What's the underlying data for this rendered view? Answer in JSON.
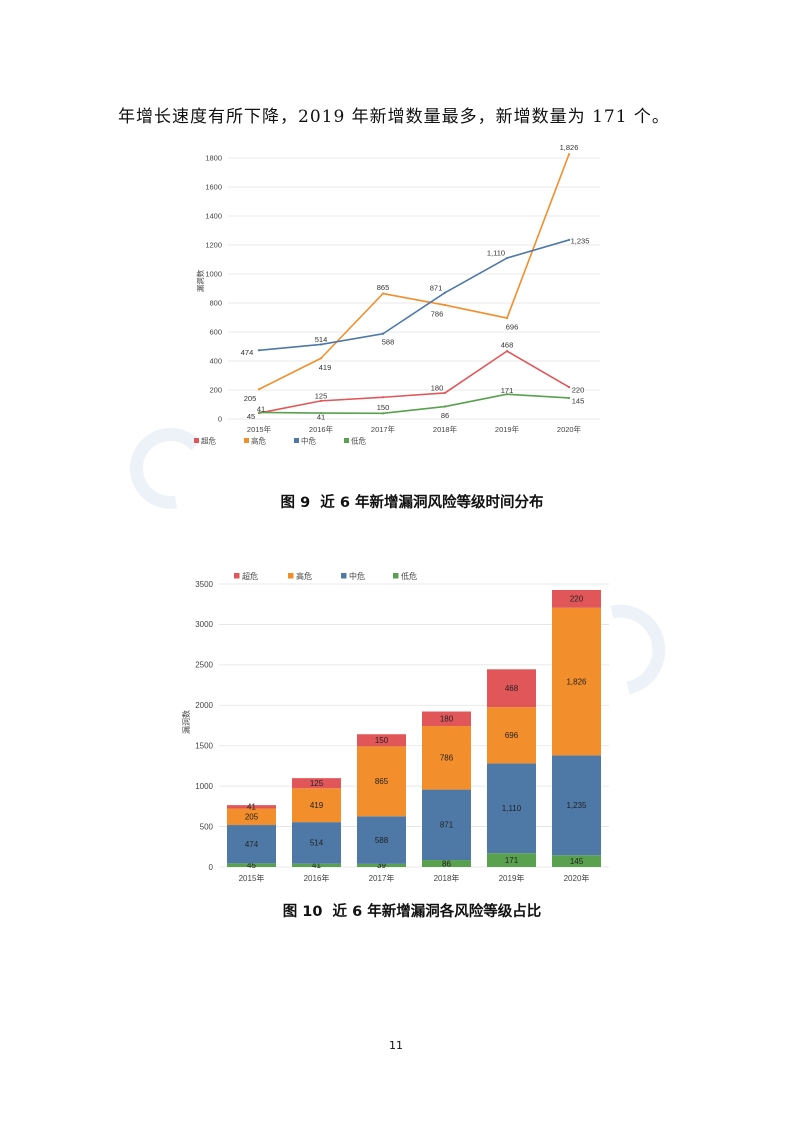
{
  "body_text": "年增长速度有所下降，2019 年新增数量最多，新增数量为 171 个。",
  "page_number": "11",
  "chart_data": [
    {
      "type": "line",
      "caption": "图 9  近 6 年新增漏洞风险等级时间分布",
      "ylabel": "漏洞数",
      "ylim": [
        0,
        1800
      ],
      "yticks": [
        0,
        200,
        400,
        600,
        800,
        1000,
        1200,
        1400,
        1600,
        1800
      ],
      "categories": [
        "2015年",
        "2016年",
        "2017年",
        "2018年",
        "2019年",
        "2020年"
      ],
      "grid": true,
      "legend": "bottom-left",
      "series": [
        {
          "name": "超危",
          "color": "#e15759",
          "values": [
            41,
            125,
            150,
            180,
            468,
            220
          ],
          "labels": [
            "41",
            "125",
            "150",
            "180",
            "468",
            "220"
          ]
        },
        {
          "name": "高危",
          "color": "#f28e2b",
          "values": [
            205,
            419,
            865,
            786,
            696,
            1826
          ],
          "labels": [
            "205",
            "419",
            "865",
            "786",
            "696",
            "1,826"
          ]
        },
        {
          "name": "中危",
          "color": "#4e79a7",
          "values": [
            474,
            514,
            588,
            871,
            1110,
            1235
          ],
          "labels": [
            "474",
            "514",
            "588",
            "871",
            "1,110",
            "1,235"
          ]
        },
        {
          "name": "低危",
          "color": "#59a14f",
          "values": [
            45,
            41,
            39,
            86,
            171,
            145
          ],
          "labels": [
            "45",
            "41",
            null,
            "86",
            "171",
            "145"
          ]
        }
      ]
    },
    {
      "type": "bar",
      "stacked": true,
      "caption": "图 10  近 6 年新增漏洞各风险等级占比",
      "ylabel": "漏洞数",
      "ylim": [
        0,
        3500
      ],
      "yticks": [
        0,
        500,
        1000,
        1500,
        2000,
        2500,
        3000,
        3500
      ],
      "categories": [
        "2015年",
        "2016年",
        "2017年",
        "2018年",
        "2019年",
        "2020年"
      ],
      "grid": true,
      "legend": "top-left",
      "series": [
        {
          "name": "超危",
          "color": "#e15759",
          "values": [
            41,
            125,
            150,
            180,
            468,
            220
          ],
          "labels": [
            "41",
            "125",
            "150",
            "180",
            "468",
            "220"
          ]
        },
        {
          "name": "高危",
          "color": "#f28e2b",
          "values": [
            205,
            419,
            865,
            786,
            696,
            1826
          ],
          "labels": [
            "205",
            "419",
            "865",
            "786",
            "696",
            "1,826"
          ]
        },
        {
          "name": "中危",
          "color": "#4e79a7",
          "values": [
            474,
            514,
            588,
            871,
            1110,
            1235
          ],
          "labels": [
            "474",
            "514",
            "588",
            "871",
            "1,110",
            "1,235"
          ]
        },
        {
          "name": "低危",
          "color": "#59a14f",
          "values": [
            45,
            41,
            39,
            86,
            171,
            145
          ],
          "labels": [
            "45",
            "41",
            "39",
            "86",
            "171",
            "145"
          ]
        }
      ]
    }
  ]
}
